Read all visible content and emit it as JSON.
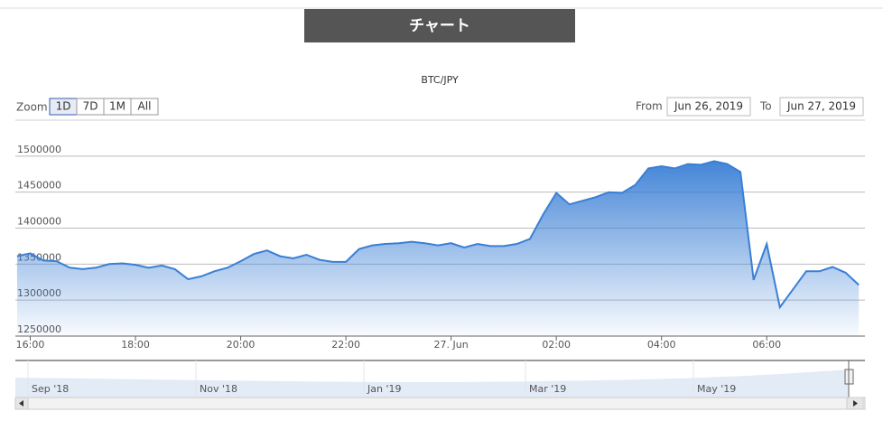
{
  "header": {
    "title": "チャート"
  },
  "range_selector": {
    "zoom_label": "Zoom",
    "buttons": [
      "1D",
      "7D",
      "1M",
      "All"
    ],
    "selected": 0,
    "from_label": "From",
    "from": "Jun 26, 2019",
    "to_label": "To",
    "to": "Jun 27, 2019"
  },
  "chart_data": {
    "type": "area",
    "title": "BTC/JPY",
    "color": "#3a7fd5",
    "grid": true,
    "x": [
      "2019-06-26T15:45",
      "2019-06-26T16:00",
      "2019-06-26T16:15",
      "2019-06-26T16:30",
      "2019-06-26T16:45",
      "2019-06-26T17:00",
      "2019-06-26T17:15",
      "2019-06-26T17:30",
      "2019-06-26T17:45",
      "2019-06-26T18:00",
      "2019-06-26T18:15",
      "2019-06-26T18:30",
      "2019-06-26T18:45",
      "2019-06-26T19:00",
      "2019-06-26T19:15",
      "2019-06-26T19:30",
      "2019-06-26T19:45",
      "2019-06-26T20:00",
      "2019-06-26T20:15",
      "2019-06-26T20:30",
      "2019-06-26T20:45",
      "2019-06-26T21:00",
      "2019-06-26T21:15",
      "2019-06-26T21:30",
      "2019-06-26T21:45",
      "2019-06-26T22:00",
      "2019-06-26T22:15",
      "2019-06-26T22:30",
      "2019-06-26T22:45",
      "2019-06-26T23:00",
      "2019-06-26T23:15",
      "2019-06-26T23:30",
      "2019-06-26T23:45",
      "2019-06-27T00:00",
      "2019-06-27T00:15",
      "2019-06-27T00:30",
      "2019-06-27T00:45",
      "2019-06-27T01:00",
      "2019-06-27T01:15",
      "2019-06-27T01:30",
      "2019-06-27T01:45",
      "2019-06-27T02:00",
      "2019-06-27T02:15",
      "2019-06-27T02:30",
      "2019-06-27T02:45",
      "2019-06-27T03:00",
      "2019-06-27T03:15",
      "2019-06-27T03:30",
      "2019-06-27T03:45",
      "2019-06-27T04:00",
      "2019-06-27T04:15",
      "2019-06-27T04:30",
      "2019-06-27T04:45",
      "2019-06-27T05:00",
      "2019-06-27T05:15",
      "2019-06-27T05:30",
      "2019-06-27T05:45",
      "2019-06-27T06:00",
      "2019-06-27T06:15",
      "2019-06-27T06:30",
      "2019-06-27T06:45",
      "2019-06-27T07:00",
      "2019-06-27T07:15",
      "2019-06-27T07:30",
      "2019-06-27T07:45"
    ],
    "values": [
      1361000,
      1365000,
      1355000,
      1354000,
      1345000,
      1343000,
      1345000,
      1350000,
      1351000,
      1349000,
      1345000,
      1348000,
      1343000,
      1329000,
      1333000,
      1340000,
      1345000,
      1354000,
      1364000,
      1369000,
      1361000,
      1358000,
      1363000,
      1356000,
      1353000,
      1353000,
      1371000,
      1376000,
      1378000,
      1379000,
      1381000,
      1379000,
      1376000,
      1379000,
      1373000,
      1378000,
      1375000,
      1375000,
      1378000,
      1385000,
      1419000,
      1449000,
      1433000,
      1438000,
      1443000,
      1450000,
      1449000,
      1460000,
      1483000,
      1486000,
      1483000,
      1489000,
      1488000,
      1493000,
      1489000,
      1478000,
      1328000,
      1378000,
      1290000,
      1315000,
      1340000,
      1340000,
      1346000,
      1338000,
      1321000
    ],
    "xlim": [
      "2019-06-26T15:43",
      "2019-06-27T07:52"
    ],
    "xticks": [
      {
        "value": "2019-06-26T16:00",
        "label": "16:00"
      },
      {
        "value": "2019-06-26T18:00",
        "label": "18:00"
      },
      {
        "value": "2019-06-26T20:00",
        "label": "20:00"
      },
      {
        "value": "2019-06-26T22:00",
        "label": "22:00"
      },
      {
        "value": "2019-06-27T00:00",
        "label": "27. Jun"
      },
      {
        "value": "2019-06-27T02:00",
        "label": "02:00"
      },
      {
        "value": "2019-06-27T04:00",
        "label": "04:00"
      },
      {
        "value": "2019-06-27T06:00",
        "label": "06:00"
      }
    ],
    "ylim": [
      1250000,
      1550000
    ],
    "yticks": [
      1250000,
      1300000,
      1350000,
      1400000,
      1450000,
      1500000
    ]
  },
  "navigator": {
    "labels": [
      "Sep '18",
      "Nov '18",
      "Jan '19",
      "Mar '19",
      "May '19"
    ]
  }
}
